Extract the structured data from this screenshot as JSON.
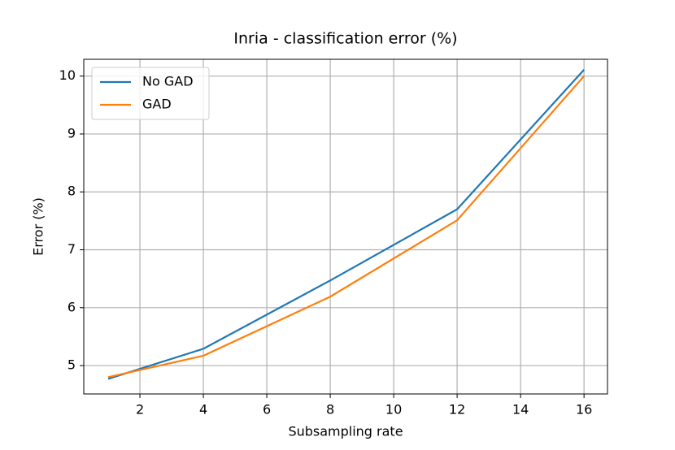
{
  "chart_data": {
    "type": "line",
    "title": "Inria - classification error (%)",
    "x_label": "Subsampling rate",
    "y_label": "Error (%)",
    "x": [
      1,
      4,
      8,
      12,
      16
    ],
    "series": [
      {
        "name": "No GAD",
        "color": "#1f77b4",
        "values": [
          4.77,
          5.29,
          6.47,
          7.7,
          10.11
        ]
      },
      {
        "name": "GAD",
        "color": "#ff7f0e",
        "values": [
          4.8,
          5.17,
          6.19,
          7.51,
          10.0
        ]
      }
    ],
    "xlim": [
      0.23,
      16.74
    ],
    "ylim": [
      4.51,
      10.29
    ],
    "xticks": [
      2,
      4,
      6,
      8,
      10,
      12,
      14,
      16
    ],
    "yticks": [
      5,
      6,
      7,
      8,
      9,
      10
    ],
    "grid": true,
    "legend": "upper left"
  }
}
